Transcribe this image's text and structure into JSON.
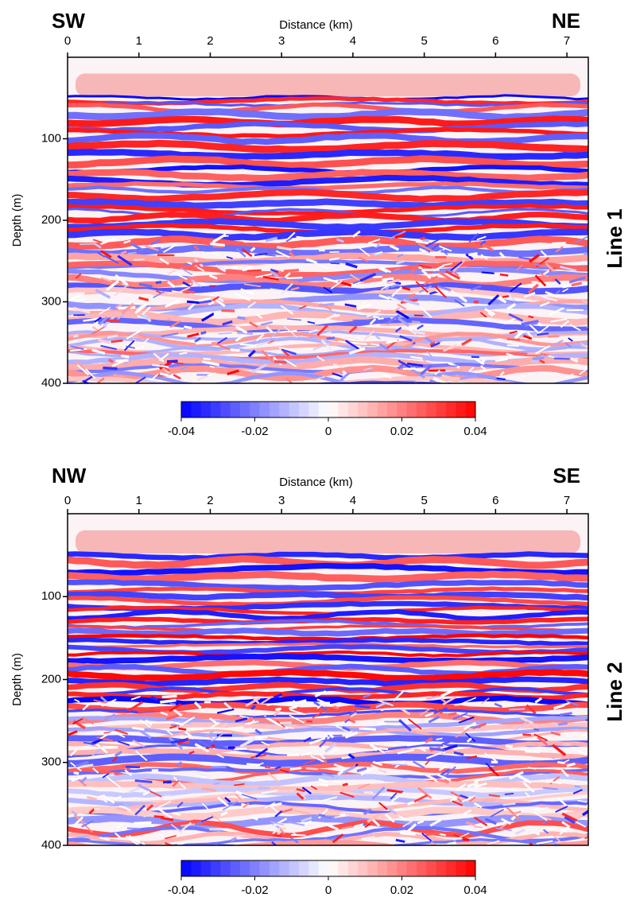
{
  "chart_data": [
    {
      "type": "seismic-section",
      "left_label": "SW",
      "right_label": "NE",
      "side_label": "Line 1",
      "xlabel": "Distance (km)",
      "ylabel": "Depth (m)",
      "xlim": [
        0,
        7.3
      ],
      "xticks": [
        0,
        1,
        2,
        3,
        4,
        5,
        6,
        7
      ],
      "ylim": [
        0,
        400
      ],
      "yticks": [
        100,
        200,
        300,
        400
      ],
      "y_inverted": true,
      "colorbar": {
        "lim": [
          -0.04,
          0.04
        ],
        "ticks": [
          -0.04,
          -0.02,
          0,
          0.02,
          0.04
        ],
        "colors": [
          "#0000ff",
          "#ffffff",
          "#ff0000"
        ]
      }
    },
    {
      "type": "seismic-section",
      "left_label": "NW",
      "right_label": "SE",
      "side_label": "Line 2",
      "xlabel": "Distance (km)",
      "ylabel": "Depth (m)",
      "xlim": [
        0,
        7.3
      ],
      "xticks": [
        0,
        1,
        2,
        3,
        4,
        5,
        6,
        7
      ],
      "ylim": [
        0,
        400
      ],
      "yticks": [
        100,
        200,
        300,
        400
      ],
      "y_inverted": true,
      "colorbar": {
        "lim": [
          -0.04,
          0.04
        ],
        "ticks": [
          -0.04,
          -0.02,
          0,
          0.02,
          0.04
        ],
        "colors": [
          "#0000ff",
          "#ffffff",
          "#ff0000"
        ]
      }
    }
  ]
}
